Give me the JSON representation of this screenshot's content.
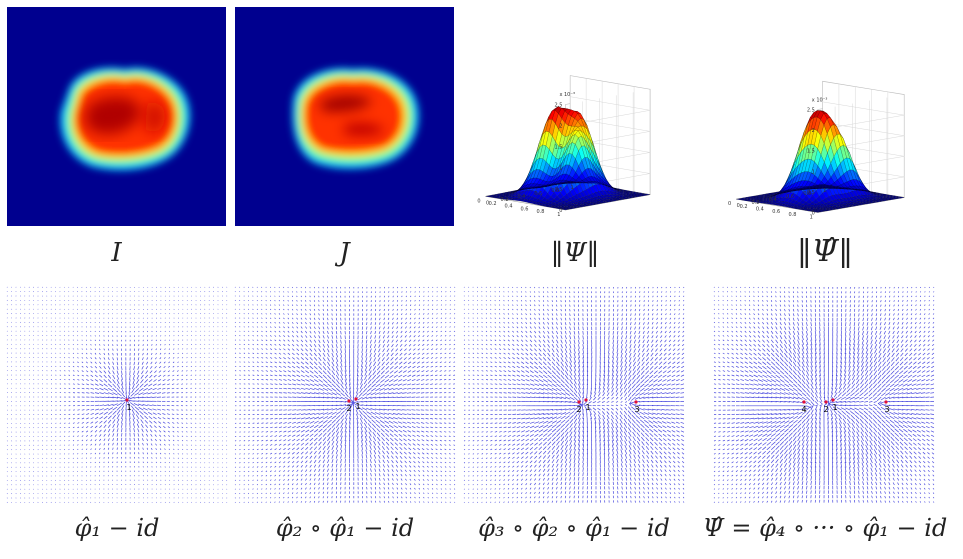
{
  "figure": {
    "top_row": {
      "panels": [
        {
          "kind": "heatmap",
          "caption": "I"
        },
        {
          "kind": "heatmap",
          "caption": "J"
        },
        {
          "kind": "surface",
          "caption": "‖Ψ‖",
          "z_exponent": "x 10⁻³"
        },
        {
          "kind": "surface",
          "caption": "‖Ψ̂‖",
          "z_exponent": "x 10⁻³"
        }
      ],
      "surface_axes": {
        "z_ticks": [
          "2.5",
          "2",
          "1.5",
          "1",
          "0.5",
          "0"
        ],
        "x_ticks": [
          "0",
          "0.2",
          "0.4",
          "0.6",
          "0.8",
          "1"
        ],
        "y_ticks": [
          "1",
          "0.8",
          "0.6",
          "0.4",
          "0.2",
          "0"
        ]
      }
    },
    "bottom_row": {
      "panels": [
        {
          "kind": "vector-field",
          "caption": "φ̂₁ − id",
          "points": [
            "1"
          ]
        },
        {
          "kind": "vector-field",
          "caption": "φ̂₂ ∘ φ̂₁ − id",
          "points": [
            "2",
            "1"
          ]
        },
        {
          "kind": "vector-field",
          "caption": "φ̂₃ ∘ φ̂₂ ∘ φ̂₁ − id",
          "points": [
            "2",
            "1",
            "3"
          ]
        },
        {
          "kind": "vector-field",
          "caption": "Ψ̂ = φ̂₄ ∘ ··· ∘ φ̂₁ − id",
          "points": [
            "4",
            "2",
            "1",
            "3"
          ]
        }
      ]
    },
    "colors": {
      "jet_background": "#00008f",
      "vector_color": "#2a2ad8",
      "point_color": "#e0103a"
    }
  }
}
